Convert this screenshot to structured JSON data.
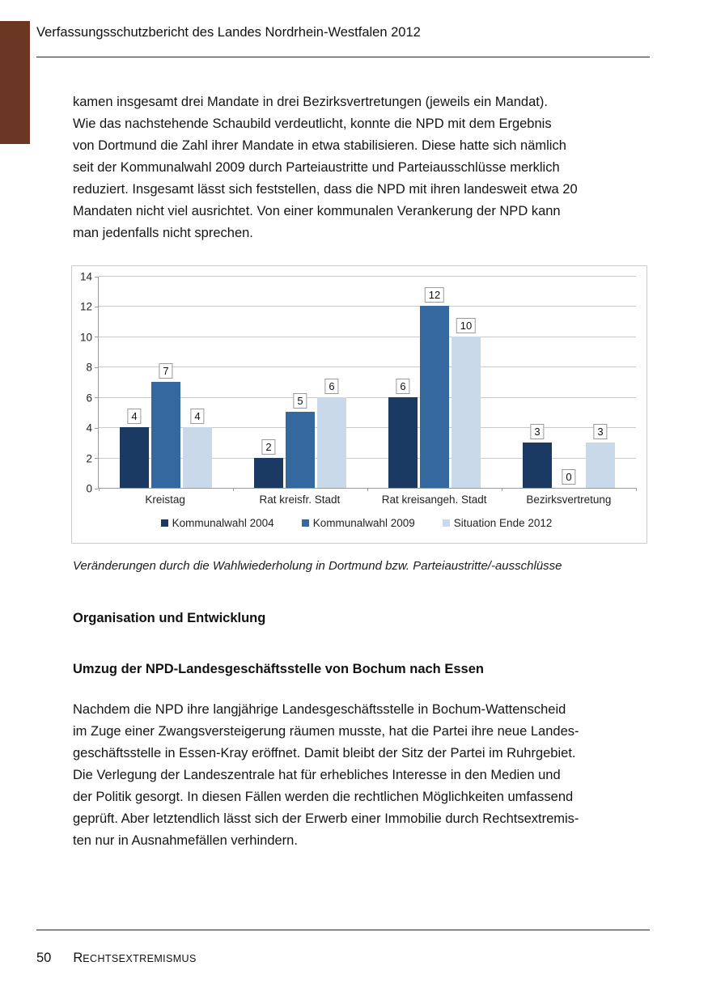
{
  "header": {
    "title": "Verfassungsschutzbericht des Landes Nordrhein-Westfalen 2012"
  },
  "paragraphs": {
    "intro_lines": [
      "kamen insgesamt drei Mandate in drei Bezirksvertretungen (jeweils ein Mandat).",
      "Wie das nachstehende Schaubild verdeutlicht, konnte die NPD mit dem Ergebnis",
      "von Dortmund die Zahl ihrer Mandate in etwa stabilisieren. Diese hatte sich nämlich",
      "seit der Kommunalwahl 2009 durch Parteiaustritte und Parteiausschlüsse merklich",
      "reduziert. Insgesamt lässt sich feststellen, dass die NPD mit ihren landesweit etwa 20",
      "Mandaten nicht viel ausrichtet. Von einer kommunalen Verankerung der NPD kann",
      "man jedenfalls nicht sprechen."
    ],
    "umzug_lines": [
      "Nachdem die NPD ihre langjährige Landesgeschäftsstelle in Bochum-Wattenscheid",
      "im Zuge einer Zwangsversteigerung räumen musste, hat die Partei ihre neue Landes-",
      "geschäftsstelle in Essen-Kray eröffnet. Damit bleibt der Sitz der Partei im Ruhrgebiet.",
      "Die Verlegung der Landeszentrale hat für erhebliches Interesse in den Medien und",
      "der Politik gesorgt. In diesen Fällen werden die rechtlichen Möglichkeiten umfassend",
      "geprüft. Aber letztendlich lässt sich der Erwerb einer Immobilie durch Rechtsextremis-",
      "ten nur in Ausnahmefällen verhindern."
    ]
  },
  "chart_caption": "Veränderungen durch die Wahlwiederholung in Dortmund bzw. Parteiaustritte/-ausschlüsse",
  "headings": {
    "section": "Organisation und Entwicklung",
    "subsection": "Umzug der NPD-Landesgeschäftsstelle von Bochum nach Essen"
  },
  "footer": {
    "page_number": "50",
    "section_label_initial": "R",
    "section_label_rest": "ECHTSEXTREMISMUS"
  },
  "colors": {
    "tab_brown": "#6c3624",
    "axis": "#9a9a9a",
    "gridline": "#c9c9c9"
  },
  "chart_data": {
    "type": "bar",
    "title": "",
    "xlabel": "",
    "ylabel": "",
    "categories": [
      "Kreistag",
      "Rat kreisfr. Stadt",
      "Rat kreisangeh. Stadt",
      "Bezirksvertretung"
    ],
    "series": [
      {
        "name": "Kommunalwahl 2004",
        "color": "#1b3a63",
        "values": [
          4,
          2,
          6,
          3
        ]
      },
      {
        "name": "Kommunalwahl 2009",
        "color": "#35689f",
        "values": [
          7,
          5,
          12,
          0
        ]
      },
      {
        "name": "Situation Ende 2012",
        "color": "#c9d9ea",
        "values": [
          4,
          6,
          10,
          3
        ]
      }
    ],
    "ylim": [
      0,
      14
    ],
    "yticks": [
      0,
      2,
      4,
      6,
      8,
      10,
      12,
      14
    ],
    "grid": true,
    "data_labels": true,
    "legend_position": "bottom"
  }
}
